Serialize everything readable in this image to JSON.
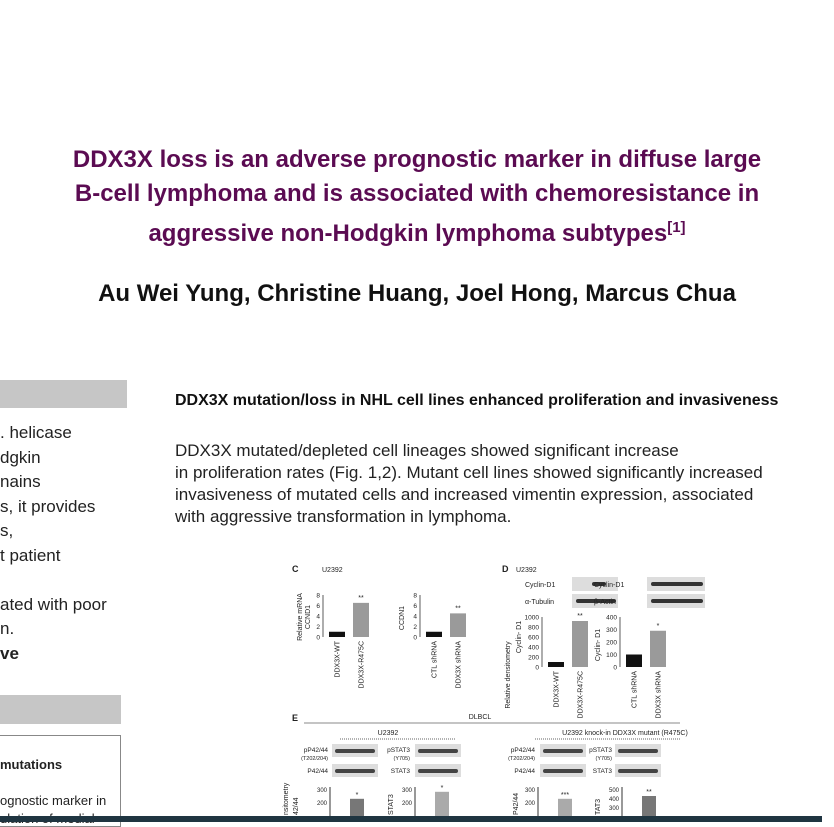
{
  "title": {
    "lines": [
      "DDX3X loss is an adverse prognostic marker in diffuse large",
      "B-cell lymphoma and is associated with chemoresistance in",
      "aggressive non-Hodgkin lymphoma subtypes"
    ],
    "ref": "[1]"
  },
  "authors": "Au Wei Yung, Christine Huang, Joel Hong, Marcus Chua",
  "left": {
    "lines": [
      ". helicase",
      "dgkin",
      "nains",
      "s, it provides",
      "s,",
      "t patient",
      "",
      "ated with poor",
      "n.",
      "ve"
    ],
    "box_heading": "mutations",
    "box_lines": [
      "ognostic marker in",
      "ulation of medial"
    ]
  },
  "section": {
    "heading": "DDX3X mutation/loss in NHL cell lines enhanced proliferation and invasiveness",
    "body": [
      "DDX3X mutated/depleted cell lineages showed significant increase",
      "in proliferation rates (Fig. 1,2). Mutant cell lines showed significantly increased",
      "invasiveness of mutated cells and increased vimentin expression, associated",
      "with aggressive transformation in lymphoma."
    ]
  },
  "figure": {
    "panel_c": {
      "label": "C",
      "cell": "U2392",
      "charts": [
        {
          "ylabel": [
            "Relative mRNA",
            "CCND1"
          ],
          "ticks": [
            0,
            2,
            4,
            6,
            8
          ],
          "ymax": 8,
          "categories": [
            "DDX3X-WT",
            "DDX3X-R475C"
          ],
          "values": [
            1,
            6.5
          ],
          "sig": "**"
        },
        {
          "ylabel": [
            "CCDN1"
          ],
          "ticks": [
            0,
            2,
            4,
            6,
            8
          ],
          "ymax": 8,
          "categories": [
            "CTL shRNA",
            "DDX3X shRNA"
          ],
          "values": [
            1,
            4.5
          ],
          "sig": "**"
        }
      ]
    },
    "panel_d": {
      "label": "D",
      "cell": "U2392",
      "blots": [
        [
          "Cyclin-D1",
          "α-Tubulin"
        ],
        [
          "Cyclin-D1",
          "β-Actin"
        ]
      ],
      "ylabel_common": "Relative densitometry",
      "charts": [
        {
          "ylabel": "Cyclin- D1",
          "ticks": [
            0,
            200,
            400,
            600,
            800,
            1000
          ],
          "ymax": 1000,
          "categories": [
            "DDX3X-WT",
            "DDX3X-R475C"
          ],
          "values": [
            100,
            920
          ],
          "sig": "**"
        },
        {
          "ylabel": "Cyclin- D1",
          "ticks": [
            0,
            100,
            200,
            300,
            400
          ],
          "ymax": 400,
          "categories": [
            "CTL shRNA",
            "DDX3X shRNA"
          ],
          "values": [
            100,
            290
          ],
          "sig": "*"
        }
      ]
    },
    "panel_e": {
      "label": "E",
      "group": "DLBCL",
      "sub": [
        "U2392",
        "U2392 knock-in DDX3X mutant (R475C)"
      ],
      "blots": [
        [
          "pP42/44",
          "(T202/204)",
          "P42/44"
        ],
        [
          "pSTAT3",
          "(Y705)",
          "STAT3"
        ],
        [
          "pP42/44",
          "(T202/204)",
          "P42/44"
        ],
        [
          "pSTAT3",
          "(Y705)",
          "STAT3"
        ]
      ],
      "ylabels": [
        "nsitometry",
        "42/44",
        "STAT3",
        "P42/44",
        "TAT3"
      ],
      "ticks": [
        [
          "300",
          "200"
        ],
        [
          "300",
          "200"
        ],
        [
          "300",
          "200"
        ],
        [
          "500",
          "400",
          "300"
        ]
      ],
      "sig": [
        "*",
        "*",
        "***",
        "**"
      ]
    }
  }
}
